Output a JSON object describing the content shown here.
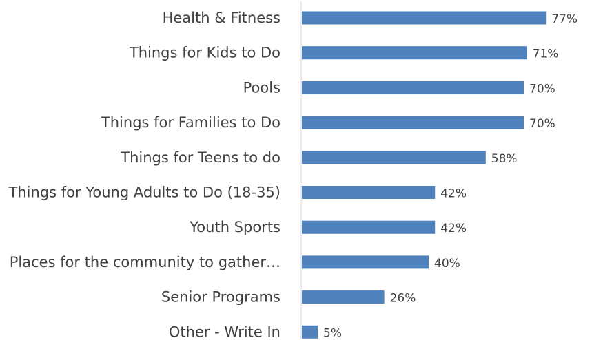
{
  "chart_data": {
    "type": "bar",
    "orientation": "horizontal",
    "categories": [
      "Health & Fitness",
      "Things for Kids to Do",
      "Pools",
      "Things for Families to Do",
      "Things for Teens to do",
      "Things for Young Adults to Do (18-35)",
      "Youth Sports",
      "Places for the community to gather…",
      "Senior Programs",
      "Other - Write In"
    ],
    "values": [
      77,
      71,
      70,
      70,
      58,
      42,
      42,
      40,
      26,
      5
    ],
    "value_labels": [
      "77%",
      "71%",
      "70%",
      "70%",
      "58%",
      "42%",
      "42%",
      "40%",
      "26%",
      "5%"
    ],
    "unit": "%",
    "xlim": [
      0,
      100
    ],
    "bar_color": "#4f81bd",
    "axis_color": "#d9d9d9",
    "text_color": "#404040",
    "grid": false,
    "legend": "none"
  }
}
